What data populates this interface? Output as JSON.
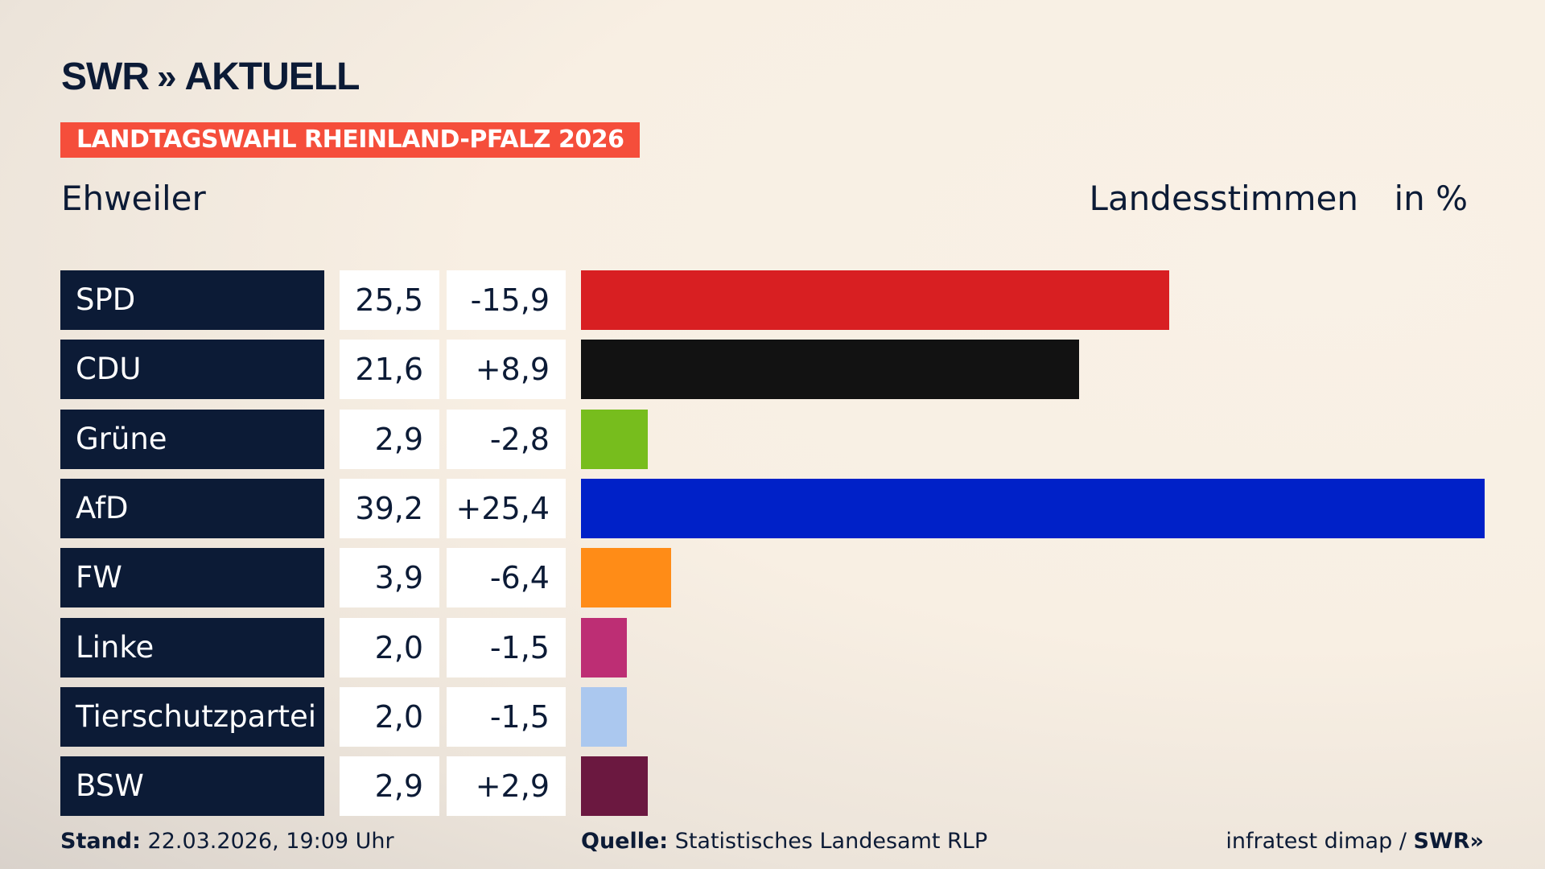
{
  "brand": {
    "logo_text": "SWR",
    "logo_suffix": "AKTUELL"
  },
  "banner": "LANDTAGSWAHL RHEINLAND-PFALZ 2026",
  "place": "Ehweiler",
  "header": {
    "type": "Landesstimmen",
    "unit": "in %"
  },
  "chart_data": {
    "type": "bar",
    "orientation": "horizontal",
    "categories": [
      "SPD",
      "CDU",
      "Grüne",
      "AfD",
      "FW",
      "Linke",
      "Tierschutzpartei",
      "BSW"
    ],
    "values": [
      25.5,
      21.6,
      2.9,
      39.2,
      3.9,
      2.0,
      2.0,
      2.9
    ],
    "value_labels": [
      "25,5",
      "21,6",
      "2,9",
      "39,2",
      "3,9",
      "2,0",
      "2,0",
      "2,9"
    ],
    "diff_labels": [
      "-15,9",
      "+8,9",
      "-2,8",
      "+25,4",
      "-6,4",
      "-1,5",
      "-1,5",
      "+2,9"
    ],
    "colors": [
      "#d81f22",
      "#121212",
      "#77bd1d",
      "#0021c8",
      "#ff8c17",
      "#bd2e74",
      "#abc8ef",
      "#6b1840"
    ],
    "ylabel": "Landesstimmen",
    "unit": "in %"
  },
  "footer": {
    "stand_label": "Stand:",
    "stand_value": "22.03.2026, 19:09 Uhr",
    "source_label": "Quelle:",
    "source_value": "Statistisches Landesamt RLP",
    "credit": "infratest dimap / ",
    "credit_logo": "SWR"
  }
}
